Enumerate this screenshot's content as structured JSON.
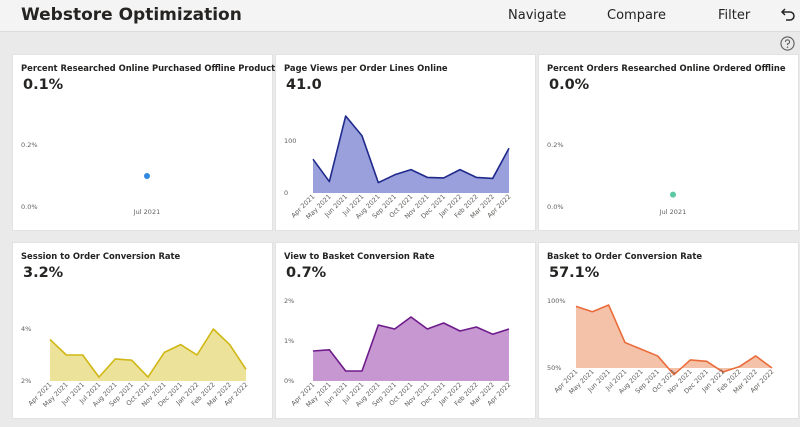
{
  "header": {
    "title": "Webstore Optimization",
    "nav": [
      {
        "label": "Navigate",
        "icon": ""
      },
      {
        "label": "Compare",
        "icon": ""
      },
      {
        "label": "Filter",
        "icon": ""
      }
    ],
    "back_icon": "back-arrow-icon",
    "help_icon": "question-circle-icon"
  },
  "cards": [
    {
      "title": "Percent Researched Online Purchased Offline Products",
      "value": "0.1%",
      "chart_data": {
        "type": "scatter",
        "x": [
          "Jul 2021"
        ],
        "values": [
          0.1
        ],
        "y_ticks": [
          "0.2%",
          "0.0%"
        ],
        "ylim": [
          0,
          0.2
        ],
        "color": "#2d8ae0"
      }
    },
    {
      "title": "Page Views per Order Lines Online",
      "value": "41.0",
      "chart_data": {
        "type": "area",
        "categories": [
          "Apr 2021",
          "May 2021",
          "Jun 2021",
          "Jul 2021",
          "Aug 2021",
          "Sep 2021",
          "Oct 2021",
          "Nov 2021",
          "Dec 2021",
          "Jan 2022",
          "Feb 2022",
          "Mar 2022",
          "Apr 2022"
        ],
        "values": [
          65,
          22,
          148,
          110,
          20,
          35,
          45,
          30,
          29,
          45,
          30,
          28,
          86
        ],
        "y_ticks": [
          "100",
          "0"
        ],
        "ylim": [
          0,
          100
        ],
        "line_color": "#1f2a8c",
        "fill_color": "#9aa0dc"
      }
    },
    {
      "title": "Percent Orders Researched Online Ordered Offline",
      "value": "0.0%",
      "chart_data": {
        "type": "scatter",
        "x": [
          "Jul 2021"
        ],
        "values": [
          0.04
        ],
        "y_ticks": [
          "0.2%",
          "0.0%"
        ],
        "ylim": [
          0,
          0.2
        ],
        "color": "#5cc7a3"
      }
    },
    {
      "title": "Session to Order Conversion Rate",
      "value": "3.2%",
      "chart_data": {
        "type": "area",
        "categories": [
          "Apr 2021",
          "May 2021",
          "Jun 2021",
          "Jul 2021",
          "Aug 2021",
          "Sep 2021",
          "Oct 2021",
          "Nov 2021",
          "Dec 2021",
          "Jan 2022",
          "Feb 2022",
          "Mar 2022",
          "Apr 2022"
        ],
        "values": [
          3.6,
          3.0,
          3.0,
          2.15,
          2.85,
          2.8,
          2.15,
          3.1,
          3.4,
          3.0,
          4.0,
          3.4,
          2.45
        ],
        "y_ticks": [
          "4%",
          "2%"
        ],
        "ylim": [
          2,
          4
        ],
        "line_color": "#d0b714",
        "fill_color": "#ece29a"
      }
    },
    {
      "title": "View to Basket Conversion Rate",
      "value": "0.7%",
      "chart_data": {
        "type": "area",
        "categories": [
          "Apr 2021",
          "May 2021",
          "Jun 2021",
          "Jul 2021",
          "Aug 2021",
          "Sep 2021",
          "Oct 2021",
          "Nov 2021",
          "Dec 2021",
          "Jan 2022",
          "Feb 2022",
          "Mar 2022",
          "Apr 2022"
        ],
        "values": [
          0.75,
          0.78,
          0.25,
          0.25,
          1.4,
          1.3,
          1.6,
          1.3,
          1.45,
          1.25,
          1.35,
          1.17,
          1.3
        ],
        "y_ticks": [
          "2%",
          "1%",
          "0%"
        ],
        "ylim": [
          0,
          2
        ],
        "line_color": "#6e1b8a",
        "fill_color": "#c797d2"
      }
    },
    {
      "title": "Basket to Order Conversion Rate",
      "value": "57.1%",
      "chart_data": {
        "type": "area",
        "categories": [
          "Apr 2021",
          "May 2021",
          "Jun 2021",
          "Jul 2021",
          "Aug 2021",
          "Sep 2021",
          "Oct 2021",
          "Nov 2021",
          "Dec 2021",
          "Jan 2022",
          "Feb 2022",
          "Mar 2022",
          "Apr 2022"
        ],
        "values": [
          96,
          92,
          97,
          69,
          64,
          59,
          45,
          56,
          55,
          47,
          51,
          59,
          50
        ],
        "y_ticks": [
          "100%",
          "50%"
        ],
        "ylim": [
          50,
          100
        ],
        "line_color": "#ea6c3b",
        "fill_color": "#f4c2a9"
      }
    }
  ]
}
